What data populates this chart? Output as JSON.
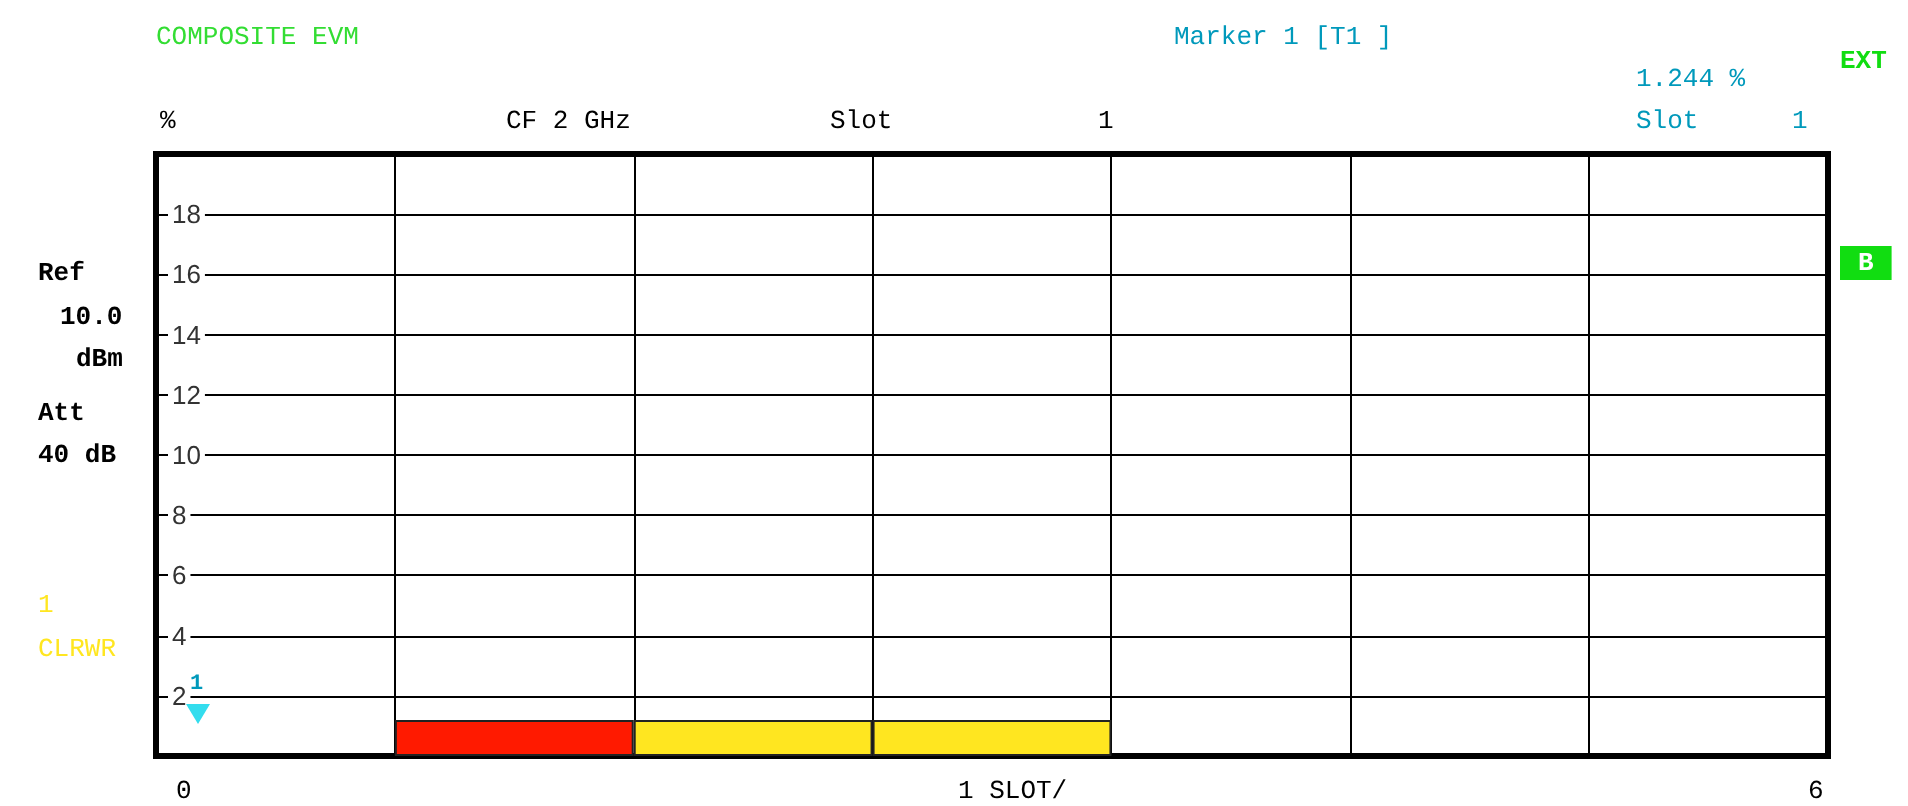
{
  "chart_data": {
    "type": "bar",
    "title": "COMPOSITE EVM",
    "ylabel": "%",
    "xlabel": "1 SLOT/",
    "categories": [
      null,
      null,
      null,
      null,
      null,
      null,
      null
    ],
    "values": [
      null,
      1.2,
      1.2,
      1.2,
      null,
      null,
      null
    ],
    "colors": [
      "#ff1a00",
      "#ff1a00",
      "#ffe620",
      "#ffe620",
      "#ffe620",
      "#ffe620",
      "#ffe620"
    ],
    "ylim": [
      0,
      20
    ],
    "yticks": [
      2,
      4,
      6,
      8,
      10,
      12,
      14,
      16,
      18
    ],
    "grid": true,
    "annotations": [
      "Marker 1 [T1 ]",
      "1.244 %",
      "Slot",
      "1",
      "EXT",
      "CF 2 GHz",
      "Slot",
      "1",
      "Ref",
      "10.0",
      "dBm",
      "Att",
      "40 dB",
      "1",
      "CLRWR",
      "B",
      "1",
      "0",
      "6"
    ]
  }
}
